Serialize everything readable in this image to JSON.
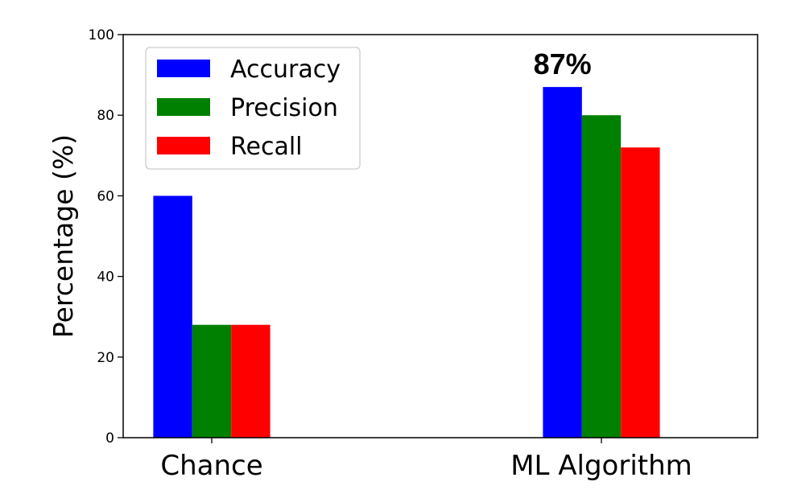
{
  "chart_data": {
    "type": "bar",
    "categories": [
      "Chance",
      "ML Algorithm"
    ],
    "series": [
      {
        "name": "Accuracy",
        "color": "#0000ff",
        "values": [
          60,
          87
        ]
      },
      {
        "name": "Precision",
        "color": "#008000",
        "values": [
          28,
          80
        ]
      },
      {
        "name": "Recall",
        "color": "#ff0000",
        "values": [
          28,
          72
        ]
      }
    ],
    "ylabel": "Percentage (%)",
    "xlabel": "",
    "ylim": [
      0,
      100
    ],
    "yticks": [
      0,
      20,
      40,
      60,
      80,
      100
    ],
    "grid": false,
    "legend": "top-left",
    "annotations": [
      {
        "text": "87%",
        "category": "ML Algorithm",
        "series": "Accuracy"
      }
    ]
  }
}
